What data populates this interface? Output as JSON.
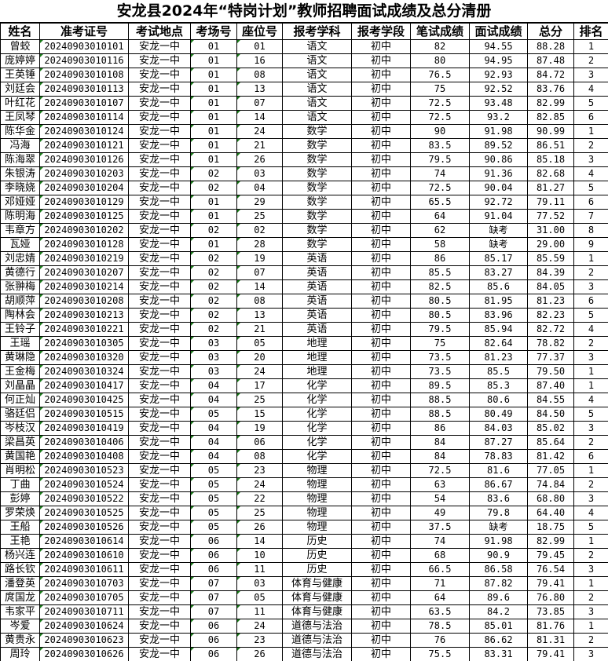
{
  "title": "安龙县2024年“特岗计划”教师招聘面试成绩及总分清册",
  "columns": [
    "姓名",
    "准考证号",
    "考试地点",
    "考场号",
    "座位号",
    "报考学科",
    "报考学段",
    "笔试成绩",
    "面试成绩",
    "总分",
    "排名"
  ],
  "rows": [
    [
      "曾蛟",
      "20240903010101",
      "安龙一中",
      "01",
      "01",
      "语文",
      "初中",
      "82",
      "94.55",
      "88.28",
      "1"
    ],
    [
      "庞婷婷",
      "20240903010116",
      "安龙一中",
      "01",
      "16",
      "语文",
      "初中",
      "80",
      "94.95",
      "87.48",
      "2"
    ],
    [
      "王英锤",
      "20240903010108",
      "安龙一中",
      "01",
      "08",
      "语文",
      "初中",
      "76.5",
      "92.93",
      "84.72",
      "3"
    ],
    [
      "刘廷会",
      "20240903010113",
      "安龙一中",
      "01",
      "13",
      "语文",
      "初中",
      "75",
      "92.52",
      "83.76",
      "4"
    ],
    [
      "叶红花",
      "20240903010107",
      "安龙一中",
      "01",
      "07",
      "语文",
      "初中",
      "72.5",
      "93.48",
      "82.99",
      "5"
    ],
    [
      "王凤琴",
      "20240903010114",
      "安龙一中",
      "01",
      "14",
      "语文",
      "初中",
      "72.5",
      "93.2",
      "82.85",
      "6"
    ],
    [
      "陈华金",
      "20240903010124",
      "安龙一中",
      "01",
      "24",
      "数学",
      "初中",
      "90",
      "91.98",
      "90.99",
      "1"
    ],
    [
      "冯海",
      "20240903010121",
      "安龙一中",
      "01",
      "21",
      "数学",
      "初中",
      "83.5",
      "89.52",
      "86.51",
      "2"
    ],
    [
      "陈海翠",
      "20240903010126",
      "安龙一中",
      "01",
      "26",
      "数学",
      "初中",
      "79.5",
      "90.86",
      "85.18",
      "3"
    ],
    [
      "朱银涛",
      "20240903010203",
      "安龙一中",
      "02",
      "03",
      "数学",
      "初中",
      "74",
      "91.36",
      "82.68",
      "4"
    ],
    [
      "李晓娆",
      "20240903010204",
      "安龙一中",
      "02",
      "04",
      "数学",
      "初中",
      "72.5",
      "90.04",
      "81.27",
      "5"
    ],
    [
      "邓娅娅",
      "20240903010129",
      "安龙一中",
      "01",
      "29",
      "数学",
      "初中",
      "65.5",
      "92.72",
      "79.11",
      "6"
    ],
    [
      "陈明海",
      "20240903010125",
      "安龙一中",
      "01",
      "25",
      "数学",
      "初中",
      "64",
      "91.04",
      "77.52",
      "7"
    ],
    [
      "韦章方",
      "20240903010202",
      "安龙一中",
      "02",
      "02",
      "数学",
      "初中",
      "62",
      "缺考",
      "31.00",
      "8"
    ],
    [
      "瓦娅",
      "20240903010128",
      "安龙一中",
      "01",
      "28",
      "数学",
      "初中",
      "58",
      "缺考",
      "29.00",
      "9"
    ],
    [
      "刘忠婧",
      "20240903010219",
      "安龙一中",
      "02",
      "19",
      "英语",
      "初中",
      "86",
      "85.17",
      "85.59",
      "1"
    ],
    [
      "黄德行",
      "20240903010207",
      "安龙一中",
      "02",
      "07",
      "英语",
      "初中",
      "85.5",
      "83.27",
      "84.39",
      "2"
    ],
    [
      "张翀梅",
      "20240903010214",
      "安龙一中",
      "02",
      "14",
      "英语",
      "初中",
      "82.5",
      "85.6",
      "84.05",
      "3"
    ],
    [
      "胡顺萍",
      "20240903010208",
      "安龙一中",
      "02",
      "08",
      "英语",
      "初中",
      "80.5",
      "81.95",
      "81.23",
      "6"
    ],
    [
      "陶林会",
      "20240903010213",
      "安龙一中",
      "02",
      "13",
      "英语",
      "初中",
      "80.5",
      "83.96",
      "82.23",
      "5"
    ],
    [
      "王铃子",
      "20240903010221",
      "安龙一中",
      "02",
      "21",
      "英语",
      "初中",
      "79.5",
      "85.94",
      "82.72",
      "4"
    ],
    [
      "王瑶",
      "20240903010305",
      "安龙一中",
      "03",
      "05",
      "地理",
      "初中",
      "75",
      "82.64",
      "78.82",
      "2"
    ],
    [
      "黄琳隐",
      "20240903010320",
      "安龙一中",
      "03",
      "20",
      "地理",
      "初中",
      "73.5",
      "81.23",
      "77.37",
      "3"
    ],
    [
      "王金梅",
      "20240903010324",
      "安龙一中",
      "03",
      "24",
      "地理",
      "初中",
      "73.5",
      "85.5",
      "79.50",
      "1"
    ],
    [
      "刘晶晶",
      "20240903010417",
      "安龙一中",
      "04",
      "17",
      "化学",
      "初中",
      "89.5",
      "85.3",
      "87.40",
      "1"
    ],
    [
      "何正灿",
      "20240903010425",
      "安龙一中",
      "04",
      "25",
      "化学",
      "初中",
      "88.5",
      "80.6",
      "84.55",
      "4"
    ],
    [
      "骆廷侣",
      "20240903010515",
      "安龙一中",
      "05",
      "15",
      "化学",
      "初中",
      "88.5",
      "80.49",
      "84.50",
      "5"
    ],
    [
      "岑枝汉",
      "20240903010419",
      "安龙一中",
      "04",
      "19",
      "化学",
      "初中",
      "86",
      "84.03",
      "85.02",
      "3"
    ],
    [
      "梁昌英",
      "20240903010406",
      "安龙一中",
      "04",
      "06",
      "化学",
      "初中",
      "84",
      "87.27",
      "85.64",
      "2"
    ],
    [
      "黄国艳",
      "20240903010408",
      "安龙一中",
      "04",
      "08",
      "化学",
      "初中",
      "84",
      "78.83",
      "81.42",
      "6"
    ],
    [
      "肖明松",
      "20240903010523",
      "安龙一中",
      "05",
      "23",
      "物理",
      "初中",
      "72.5",
      "81.6",
      "77.05",
      "1"
    ],
    [
      "丁曲",
      "20240903010524",
      "安龙一中",
      "05",
      "24",
      "物理",
      "初中",
      "63",
      "86.67",
      "74.84",
      "2"
    ],
    [
      "彭婷",
      "20240903010522",
      "安龙一中",
      "05",
      "22",
      "物理",
      "初中",
      "54",
      "83.6",
      "68.80",
      "3"
    ],
    [
      "罗荣焕",
      "20240903010525",
      "安龙一中",
      "05",
      "25",
      "物理",
      "初中",
      "49",
      "79.8",
      "64.40",
      "4"
    ],
    [
      "王船",
      "20240903010526",
      "安龙一中",
      "05",
      "26",
      "物理",
      "初中",
      "37.5",
      "缺考",
      "18.75",
      "5"
    ],
    [
      "王艳",
      "20240903010614",
      "安龙一中",
      "06",
      "14",
      "历史",
      "初中",
      "74",
      "91.98",
      "82.99",
      "1"
    ],
    [
      "杨兴连",
      "20240903010610",
      "安龙一中",
      "06",
      "10",
      "历史",
      "初中",
      "68",
      "90.9",
      "79.45",
      "2"
    ],
    [
      "路长钦",
      "20240903010611",
      "安龙一中",
      "06",
      "11",
      "历史",
      "初中",
      "66.5",
      "86.58",
      "76.54",
      "3"
    ],
    [
      "潘登英",
      "20240903010703",
      "安龙一中",
      "07",
      "03",
      "体育与健康",
      "初中",
      "71",
      "87.82",
      "79.41",
      "1"
    ],
    [
      "庹国龙",
      "20240903010705",
      "安龙一中",
      "07",
      "05",
      "体育与健康",
      "初中",
      "64",
      "89.6",
      "76.80",
      "2"
    ],
    [
      "韦家平",
      "20240903010711",
      "安龙一中",
      "07",
      "11",
      "体育与健康",
      "初中",
      "63.5",
      "84.2",
      "73.85",
      "3"
    ],
    [
      "岑爱",
      "20240903010624",
      "安龙一中",
      "06",
      "24",
      "道德与法治",
      "初中",
      "78.5",
      "85.01",
      "81.76",
      "1"
    ],
    [
      "黄贵永",
      "20240903010623",
      "安龙一中",
      "06",
      "23",
      "道德与法治",
      "初中",
      "76",
      "86.62",
      "81.31",
      "2"
    ],
    [
      "周玲",
      "20240903010626",
      "安龙一中",
      "06",
      "26",
      "道德与法治",
      "初中",
      "75.5",
      "83.31",
      "79.41",
      "3"
    ]
  ]
}
